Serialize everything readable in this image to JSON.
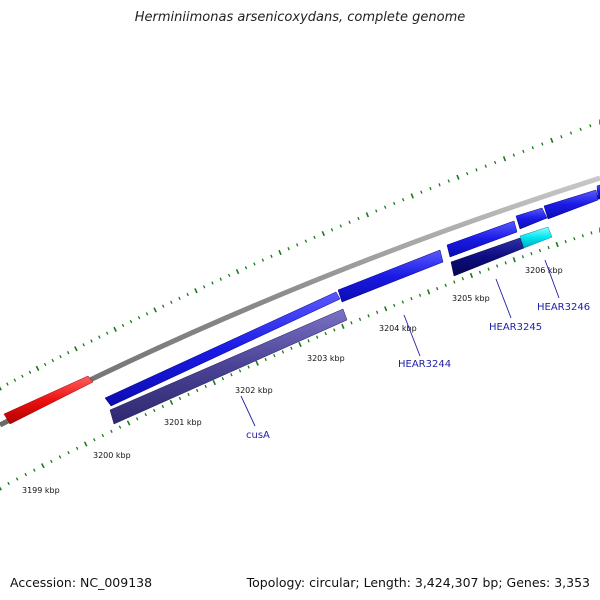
{
  "title": "Herminiimonas arsenicoxydans, complete genome",
  "footer": {
    "accession": "Accession: NC_009138",
    "summary": "Topology: circular; Length: 3,424,307 bp; Genes: 3,353"
  },
  "scale": {
    "ticks": [
      {
        "label": "3199 kbp"
      },
      {
        "label": "3200 kbp"
      },
      {
        "label": "3201 kbp"
      },
      {
        "label": "3202 kbp"
      },
      {
        "label": "3203 kbp"
      },
      {
        "label": "3204 kbp"
      },
      {
        "label": "3205 kbp"
      },
      {
        "label": "3206 kbp"
      }
    ]
  },
  "genes": [
    {
      "name": "",
      "color": "#ee1111"
    },
    {
      "name": "",
      "color": "#1a1ae6"
    },
    {
      "name": "cusA",
      "color": "#4a4294"
    },
    {
      "name": "HEAR3244",
      "color": "#1a1ae6"
    },
    {
      "name": "HEAR3245",
      "color": "#0c0c80"
    },
    {
      "name": "",
      "color": "#1a1ae6"
    },
    {
      "name": "HEAR3246",
      "color": "#00e6f0"
    },
    {
      "name": "",
      "color": "#1a1ae6"
    },
    {
      "name": "",
      "color": "#1a1ae6"
    }
  ],
  "colors": {
    "backbone": "#8a8a8a",
    "tick_marks": "#1a7a1a"
  }
}
